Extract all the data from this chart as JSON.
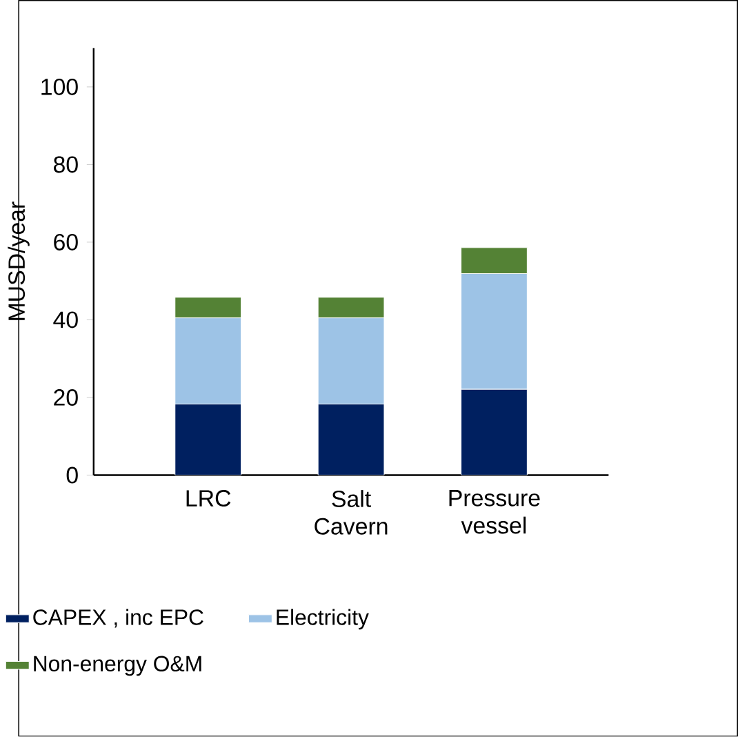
{
  "chart_data": {
    "type": "bar",
    "stacked": true,
    "ylabel": "MUSD/year",
    "legend": "bottom",
    "categories": [
      "LRC",
      "Salt Cavern",
      "Pressure vessel"
    ],
    "series": [
      {
        "name": "CAPEX , inc EPC",
        "color": "#002060",
        "values": [
          18.3,
          18.3,
          22.1
        ]
      },
      {
        "name": "Electricity",
        "color": "#9dc3e6",
        "values": [
          22.2,
          22.2,
          29.8
        ]
      },
      {
        "name": "Non-energy O&M",
        "color": "#548235",
        "values": [
          5.3,
          5.3,
          6.7
        ]
      }
    ],
    "ylim": [
      0,
      110
    ],
    "yticks": [
      0,
      20,
      40,
      60,
      80,
      100
    ]
  }
}
